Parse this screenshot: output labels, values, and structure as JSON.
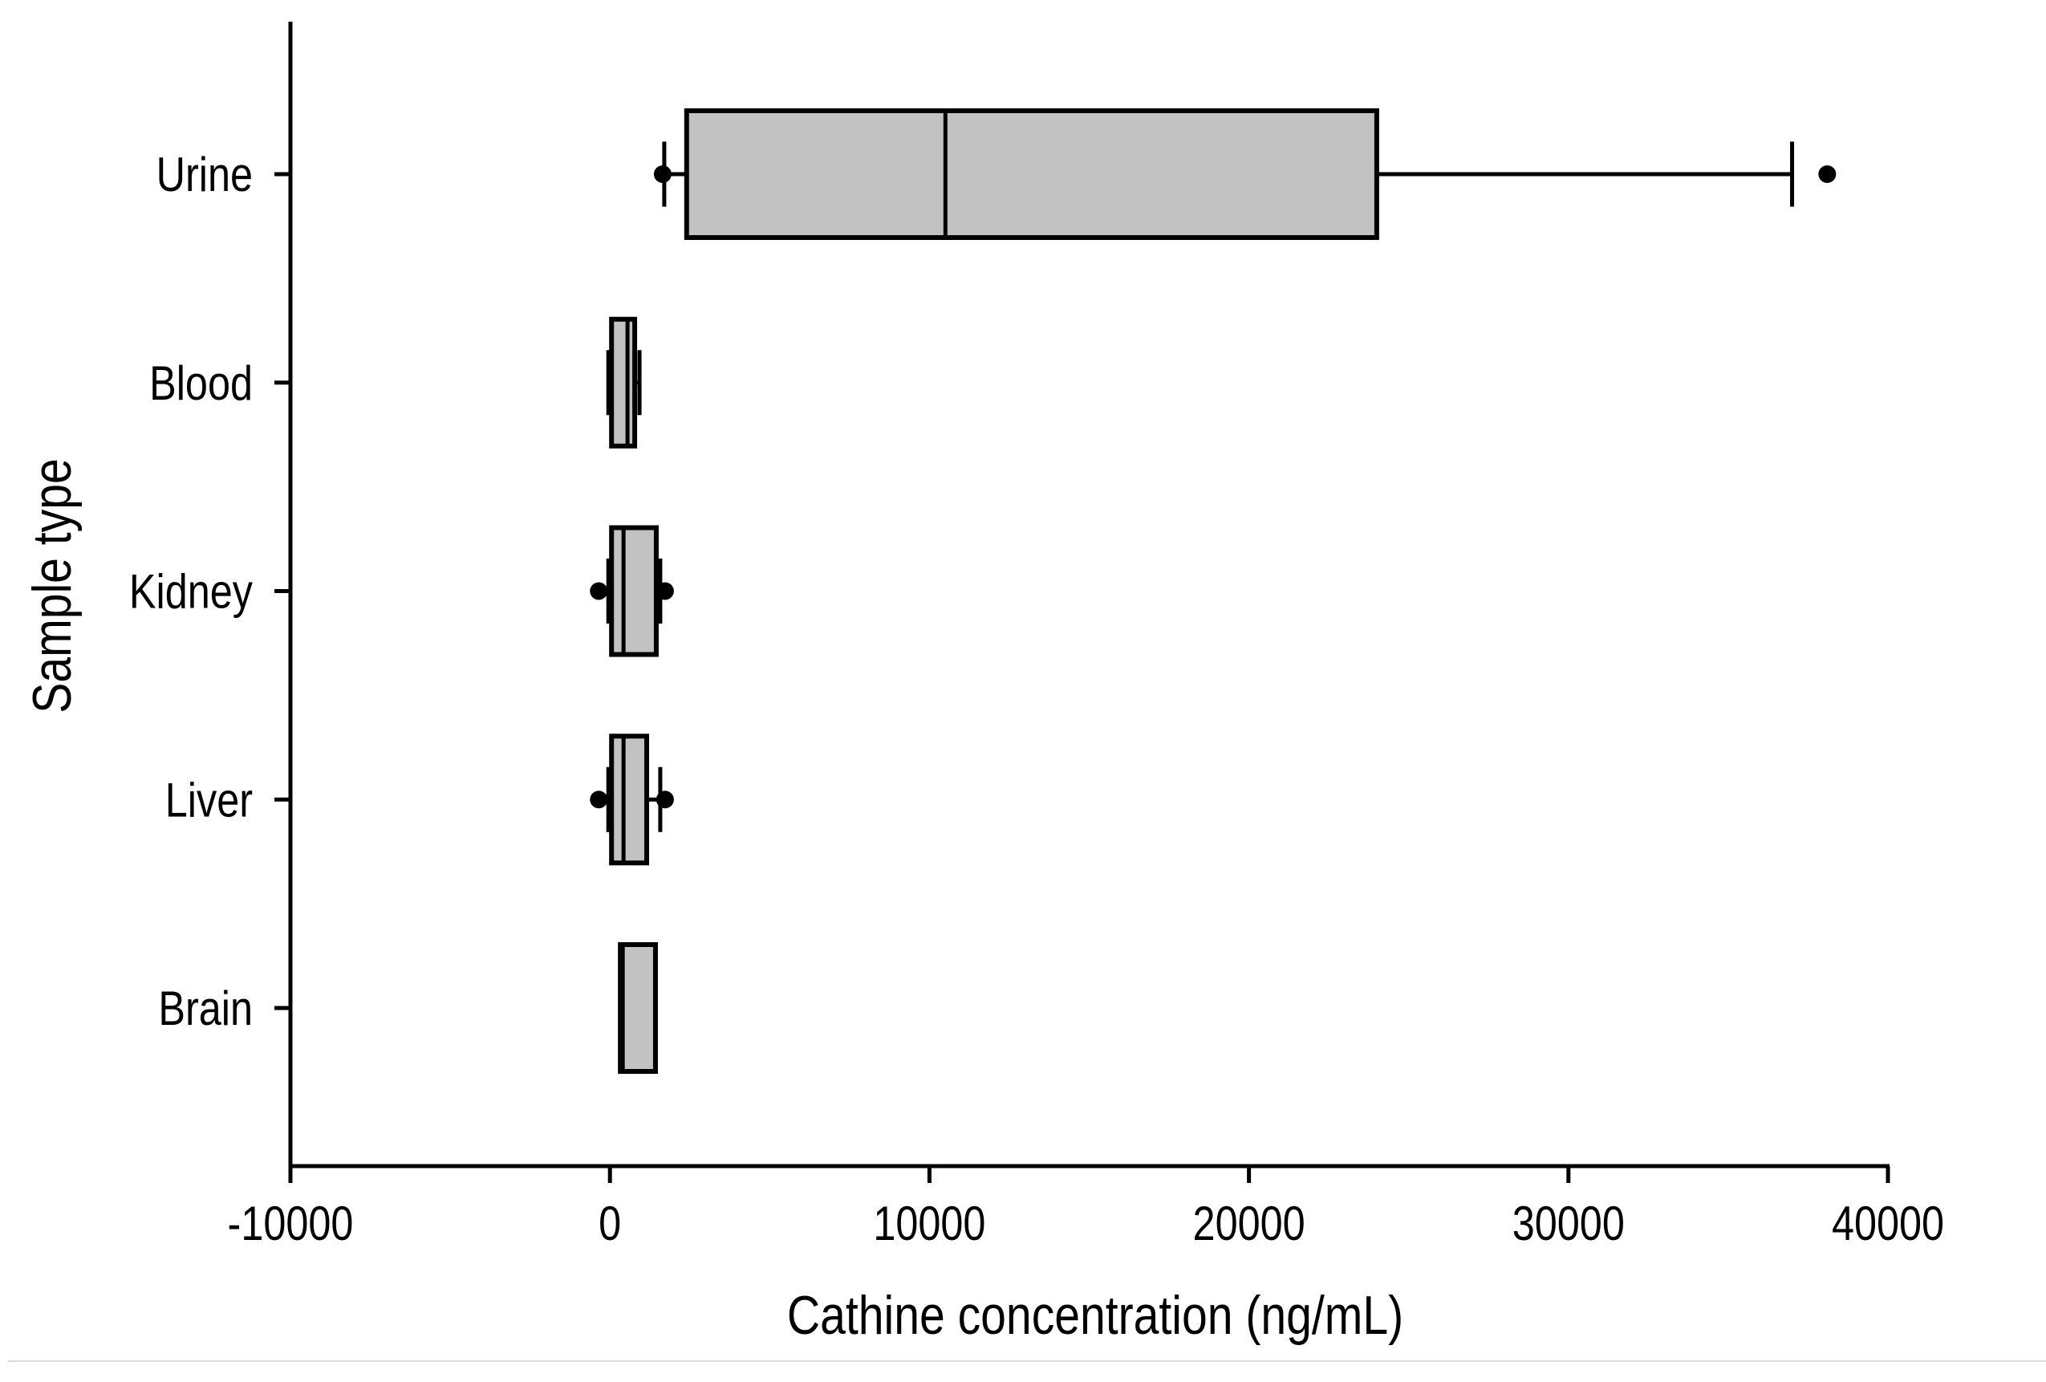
{
  "figure": {
    "xlabel": "Cathine concentration (ng/mL)",
    "ylabel": "Sample type"
  },
  "chart_data": {
    "type": "boxplot",
    "orientation": "horizontal",
    "title": "",
    "xlabel": "Cathine concentration (ng/mL)",
    "ylabel": "Sample type",
    "xlim": [
      -10000,
      40000
    ],
    "grid": false,
    "legend": "none",
    "x_ticks": [
      {
        "value": -10000,
        "label": "-10000"
      },
      {
        "value": 0,
        "label": "0"
      },
      {
        "value": 10000,
        "label": "10000"
      },
      {
        "value": 20000,
        "label": "20000"
      },
      {
        "value": 30000,
        "label": "30000"
      },
      {
        "value": 40000,
        "label": "40000"
      }
    ],
    "categories": [
      "Urine",
      "Blood",
      "Kidney",
      "Liver",
      "Brain"
    ],
    "series": [
      {
        "category": "Urine",
        "whisker_low": 1700,
        "q1": 2400,
        "median": 10500,
        "q3": 24000,
        "whisker_high": 37000,
        "outliers": [
          1650,
          38100
        ]
      },
      {
        "category": "Blood",
        "whisker_low": -50,
        "q1": 50,
        "median": 550,
        "q3": 775,
        "whisker_high": 925,
        "outliers": []
      },
      {
        "category": "Kidney",
        "whisker_low": -50,
        "q1": 50,
        "median": 425,
        "q3": 1450,
        "whisker_high": 1575,
        "outliers": [
          -350,
          1725
        ]
      },
      {
        "category": "Liver",
        "whisker_low": -50,
        "q1": 50,
        "median": 425,
        "q3": 1150,
        "whisker_high": 1575,
        "outliers": [
          -350,
          1725
        ]
      },
      {
        "category": "Brain",
        "whisker_low": null,
        "q1": 325,
        "median": 400,
        "q3": 1425,
        "whisker_high": null,
        "outliers": []
      }
    ],
    "colors": {
      "box_fill": "#c2c2c2",
      "box_stroke": "#000000",
      "axis": "#000000",
      "outlier": "#000000",
      "text": "#000000"
    }
  }
}
